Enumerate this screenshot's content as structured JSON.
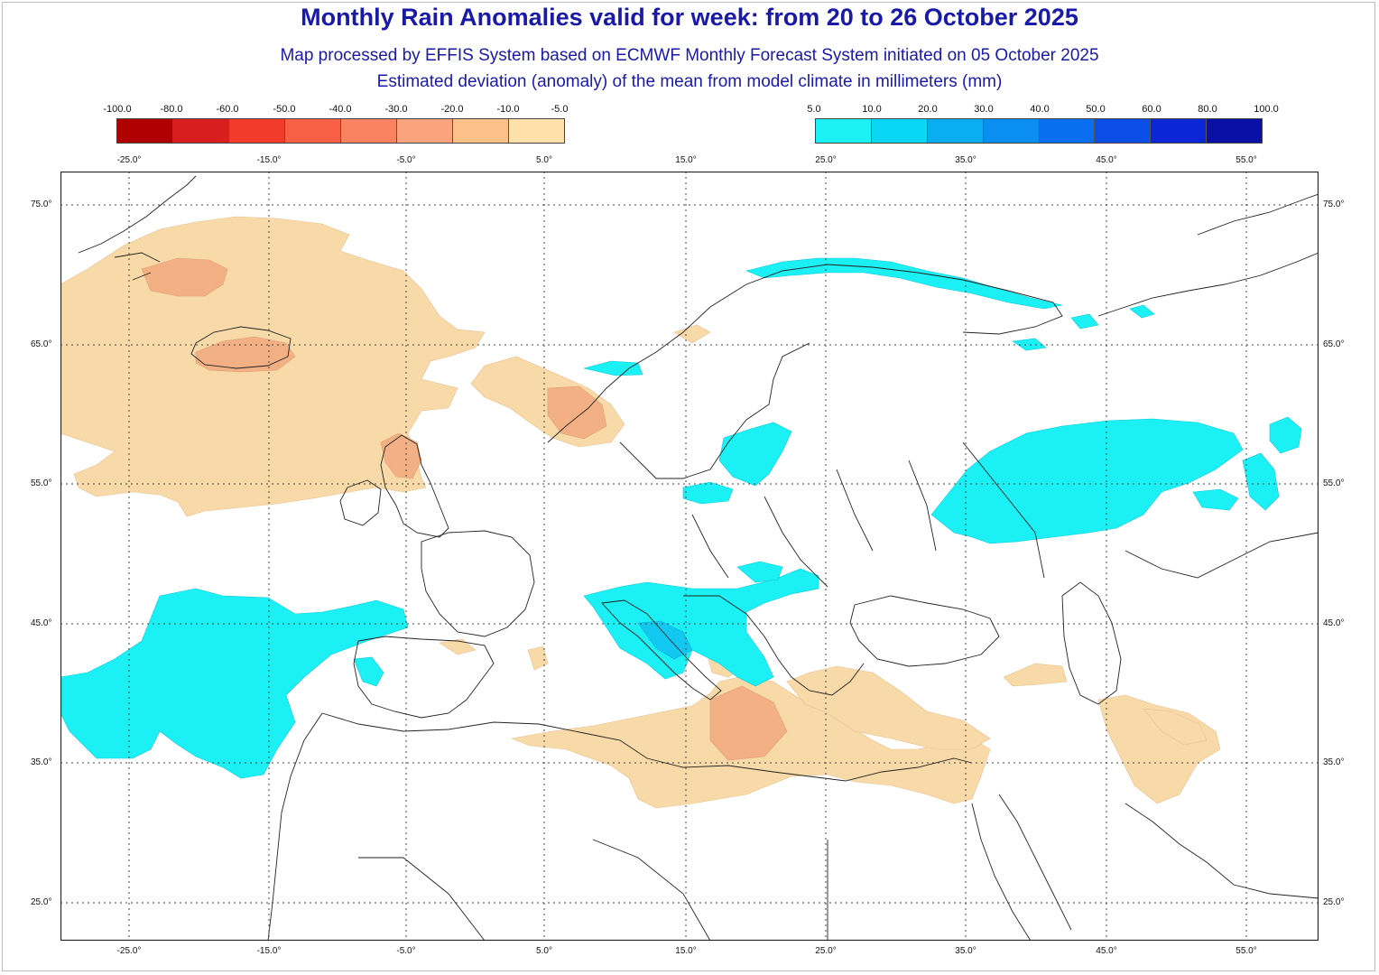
{
  "header": {
    "title": "Monthly Rain Anomalies valid for week: from 20 to 26 October 2025",
    "subtitle": "Map processed by EFFIS System based on ECMWF Monthly Forecast System initiated on 05 October 2025",
    "description": "Estimated deviation (anomaly) of the mean from model climate in millimeters (mm)"
  },
  "legend": {
    "negative": {
      "labels": [
        "-100.0",
        "-80.0",
        "-60.0",
        "-50.0",
        "-40.0",
        "-30.0",
        "-20.0",
        "-10.0",
        "-5.0"
      ],
      "colors": [
        "#b00000",
        "#d81e1e",
        "#f23b2b",
        "#f76045",
        "#f98260",
        "#faa37d",
        "#fcc089",
        "#fde0aa"
      ]
    },
    "positive": {
      "labels": [
        "5.0",
        "10.0",
        "20.0",
        "30.0",
        "40.0",
        "50.0",
        "60.0",
        "80.0",
        "100.0"
      ],
      "colors": [
        "#1bf0f4",
        "#0ad6f6",
        "#0aaef0",
        "#0a8ef0",
        "#0a6ef0",
        "#0a4ee6",
        "#0a26d6",
        "#0a10a6"
      ]
    }
  },
  "axes": {
    "lon_labels": [
      "-25.0°",
      "-15.0°",
      "-5.0°",
      "5.0°",
      "15.0°",
      "25.0°",
      "35.0°",
      "45.0°",
      "55.0°"
    ],
    "lat_labels": [
      "75.0°",
      "65.0°",
      "55.0°",
      "45.0°",
      "35.0°",
      "25.0°"
    ]
  },
  "colors": {
    "dry_light": "#f8d9a8",
    "dry_medium": "#f2b084",
    "wet_light": "#1bf0f4",
    "wet_medium": "#12c8f0",
    "coastline": "#222222"
  }
}
